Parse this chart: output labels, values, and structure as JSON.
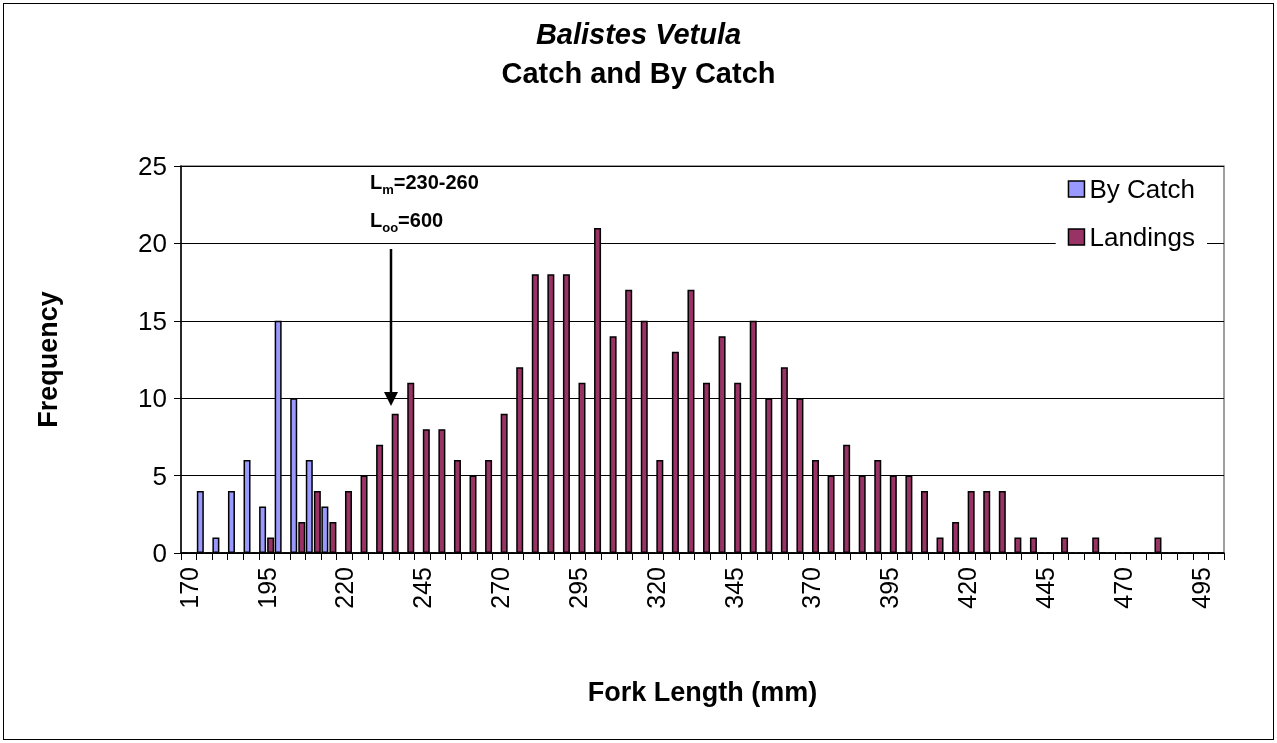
{
  "chart_data": {
    "type": "bar",
    "title": "Balistes Vetula",
    "subtitle": "Catch and By Catch",
    "xlabel": "Fork Length (mm)",
    "ylabel": "Frequency",
    "categories": [
      "170",
      null,
      null,
      null,
      null,
      "195",
      null,
      null,
      null,
      null,
      "220",
      null,
      null,
      null,
      null,
      "245",
      null,
      null,
      null,
      null,
      "270",
      null,
      null,
      null,
      null,
      "295",
      null,
      null,
      null,
      null,
      "320",
      null,
      null,
      null,
      null,
      "345",
      null,
      null,
      null,
      null,
      "370",
      null,
      null,
      null,
      null,
      "395",
      null,
      null,
      null,
      null,
      "420",
      null,
      null,
      null,
      null,
      "445",
      null,
      null,
      null,
      null,
      "470",
      null,
      null,
      null,
      null,
      "495",
      null
    ],
    "series": [
      {
        "name": "By Catch",
        "color": "#9999ff",
        "values": [
          0,
          4,
          1,
          4,
          6,
          3,
          15,
          10,
          6,
          3,
          0,
          0,
          0,
          0,
          0,
          0,
          0,
          0,
          0,
          0,
          0,
          0,
          0,
          0,
          0,
          0,
          0,
          0,
          0,
          0,
          0,
          0,
          0,
          0,
          0,
          0,
          0,
          0,
          0,
          0,
          0,
          0,
          0,
          0,
          0,
          0,
          0,
          0,
          0,
          0,
          0,
          0,
          0,
          0,
          0,
          0,
          0,
          0,
          0,
          0,
          0,
          0,
          0,
          0,
          0,
          0,
          0
        ]
      },
      {
        "name": "Landings",
        "color": "#993366",
        "values": [
          0,
          0,
          0,
          0,
          0,
          1,
          0,
          2,
          4,
          2,
          4,
          5,
          7,
          9,
          11,
          8,
          8,
          6,
          5,
          6,
          9,
          12,
          18,
          18,
          18,
          11,
          21,
          14,
          17,
          15,
          6,
          13,
          17,
          11,
          14,
          11,
          15,
          10,
          12,
          10,
          6,
          5,
          7,
          5,
          6,
          5,
          5,
          4,
          1,
          2,
          4,
          4,
          4,
          1,
          1,
          0,
          1,
          0,
          1,
          0,
          0,
          0,
          1,
          0,
          0,
          0,
          0
        ]
      }
    ],
    "ylim": [
      0,
      25
    ],
    "yticks": [
      0,
      5,
      10,
      15,
      20,
      25
    ],
    "grid": "y",
    "legend": "top right",
    "annotations": [
      "L$_{m}$=230-260",
      "L$_{oo}$=600"
    ]
  }
}
